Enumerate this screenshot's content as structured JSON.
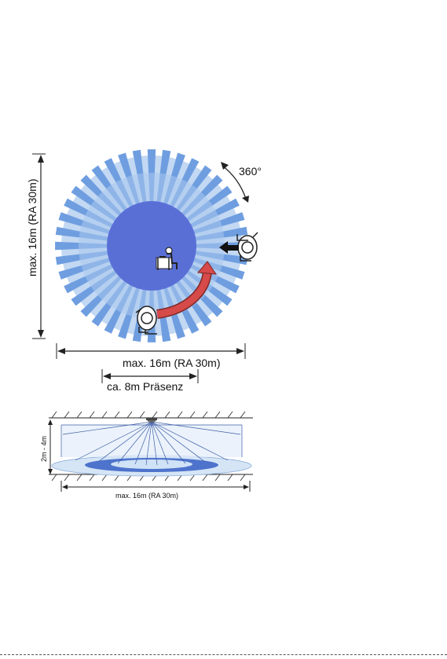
{
  "top_view": {
    "rotation_label": "360°",
    "vertical_range_label": "max. 16m (RA 30m)",
    "horizontal_range_label": "max. 16m (RA 30m)",
    "presence_label": "ca. 8m Präsenz"
  },
  "side_view": {
    "height_label": "2m - 4m",
    "range_label": "max. 16m (RA 30m)"
  },
  "colors": {
    "inner_circle": "#5a6fd6",
    "ring_light": "#a9c8ef",
    "ray_blue": "#6f9ee0",
    "arrow_red": "#d64a4a",
    "line": "#222222"
  }
}
